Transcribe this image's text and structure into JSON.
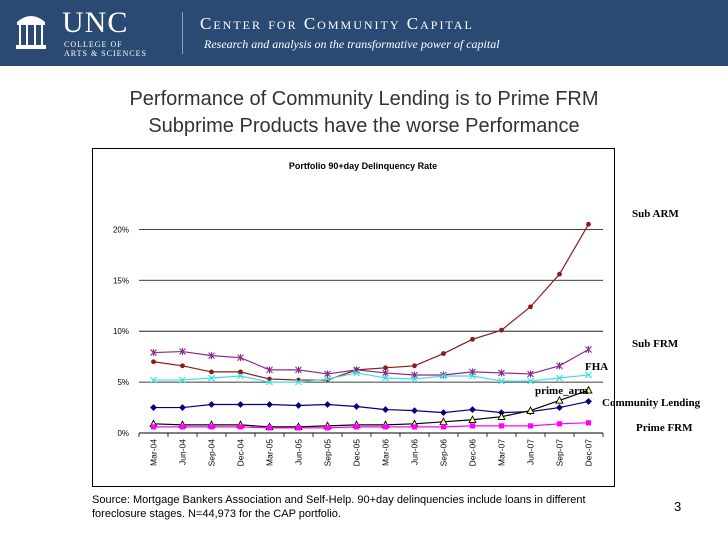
{
  "header": {
    "unc_name": "UNC",
    "unc_sub1": "COLLEGE OF",
    "unc_sub2": "ARTS & SCIENCES",
    "center_name": "Center for Community Capital",
    "tagline": "Research and analysis on the transformative power of capital",
    "bg_color": "#2b4a73"
  },
  "slide": {
    "title_line1": "Performance of Community Lending is to Prime FRM",
    "title_line2": "Subprime Products have the worse Performance",
    "source": "Source: Mortgage Bankers Association and Self-Help. 90+day delinquencies include loans in different foreclosure stages. N=44,973 for the CAP portfolio.",
    "page_number": "3"
  },
  "chart_data": {
    "type": "line",
    "title": "Portfolio 90+day Delinquency Rate",
    "xlabel": "",
    "ylabel": "",
    "categories": [
      "Mar-04",
      "Jun-04",
      "Sep-04",
      "Dec-04",
      "Mar-05",
      "Jun-05",
      "Sep-05",
      "Dec-05",
      "Mar-06",
      "Jun-06",
      "Sep-06",
      "Dec-06",
      "Mar-07",
      "Jun-07",
      "Sep-07",
      "Dec-07"
    ],
    "ylim": [
      0,
      0.22
    ],
    "yticks": [
      {
        "value": 0,
        "label": "0%"
      },
      {
        "value": 0.05,
        "label": "5%"
      },
      {
        "value": 0.1,
        "label": "10%"
      },
      {
        "value": 0.15,
        "label": "15%"
      },
      {
        "value": 0.2,
        "label": "20%"
      }
    ],
    "grid": "horizontal",
    "legend": "none",
    "series": [
      {
        "name": "Sub ARM",
        "color": "#8b1a1a",
        "marker": "circle",
        "values": [
          0.07,
          0.066,
          0.06,
          0.06,
          0.053,
          0.052,
          0.052,
          0.062,
          0.064,
          0.066,
          0.078,
          0.092,
          0.101,
          0.124,
          0.156,
          0.205
        ]
      },
      {
        "name": "Sub FRM",
        "color": "#8b2a8b",
        "marker": "star",
        "values": [
          0.079,
          0.08,
          0.076,
          0.074,
          0.062,
          0.062,
          0.058,
          0.062,
          0.059,
          0.057,
          0.057,
          0.06,
          0.059,
          0.058,
          0.066,
          0.082
        ]
      },
      {
        "name": "prime_arm",
        "color": "#40e0e0",
        "marker": "x",
        "values": [
          0.052,
          0.052,
          0.054,
          0.056,
          0.05,
          0.05,
          0.053,
          0.059,
          0.054,
          0.053,
          0.056,
          0.056,
          0.051,
          0.051,
          0.054,
          0.057
        ]
      },
      {
        "name": "Community Lending",
        "color": "#000080",
        "marker": "diamond",
        "values": [
          0.025,
          0.025,
          0.028,
          0.028,
          0.028,
          0.027,
          0.028,
          0.026,
          0.023,
          0.022,
          0.02,
          0.023,
          0.02,
          0.021,
          0.025,
          0.031
        ]
      },
      {
        "name": "FHA",
        "color": "#000000",
        "marker": "triangle",
        "values": [
          0.009,
          0.008,
          0.008,
          0.008,
          0.006,
          0.006,
          0.007,
          0.008,
          0.008,
          0.009,
          0.011,
          0.013,
          0.016,
          0.022,
          0.032,
          0.042
        ]
      },
      {
        "name": "Prime FRM",
        "color": "#ff00ff",
        "marker": "square",
        "values": [
          0.006,
          0.006,
          0.006,
          0.006,
          0.005,
          0.005,
          0.005,
          0.006,
          0.006,
          0.006,
          0.006,
          0.007,
          0.007,
          0.007,
          0.009,
          0.01
        ]
      }
    ]
  }
}
